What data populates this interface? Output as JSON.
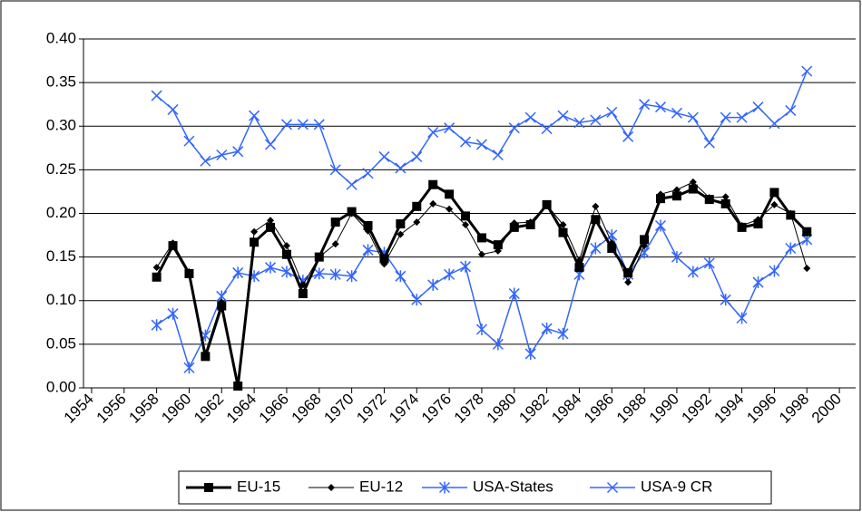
{
  "chart_data": {
    "type": "line",
    "x": [
      1958,
      1959,
      1960,
      1961,
      1962,
      1963,
      1964,
      1965,
      1966,
      1967,
      1968,
      1969,
      1970,
      1971,
      1972,
      1973,
      1974,
      1975,
      1976,
      1977,
      1978,
      1979,
      1980,
      1981,
      1982,
      1983,
      1984,
      1985,
      1986,
      1987,
      1988,
      1989,
      1990,
      1991,
      1992,
      1993,
      1994,
      1995,
      1996,
      1997,
      1998
    ],
    "series": [
      {
        "name": "EU-15",
        "color": "#000000",
        "marker": "square",
        "line_width": 3,
        "values": [
          0.127,
          0.163,
          0.131,
          0.036,
          0.094,
          0.002,
          0.167,
          0.184,
          0.153,
          0.108,
          0.15,
          0.19,
          0.202,
          0.186,
          0.148,
          0.188,
          0.208,
          0.233,
          0.222,
          0.197,
          0.172,
          0.164,
          0.184,
          0.187,
          0.21,
          0.178,
          0.138,
          0.193,
          0.16,
          0.132,
          0.17,
          0.217,
          0.22,
          0.228,
          0.216,
          0.211,
          0.184,
          0.188,
          0.224,
          0.198,
          0.179
        ]
      },
      {
        "name": "EU-12",
        "color": "#000000",
        "marker": "diamond",
        "line_width": 1,
        "values": [
          0.138,
          0.166,
          0.133,
          0.04,
          0.098,
          0.004,
          0.179,
          0.192,
          0.163,
          0.118,
          0.15,
          0.165,
          0.2,
          0.18,
          0.142,
          0.176,
          0.19,
          0.211,
          0.205,
          0.187,
          0.153,
          0.157,
          0.189,
          0.19,
          0.21,
          0.187,
          0.146,
          0.208,
          0.166,
          0.121,
          0.163,
          0.222,
          0.227,
          0.236,
          0.218,
          0.219,
          0.186,
          0.193,
          0.21,
          0.2,
          0.137
        ]
      },
      {
        "name": "USA-States",
        "color": "#3366ff",
        "marker": "asterisk",
        "line_width": 1.5,
        "values": [
          0.072,
          0.085,
          0.023,
          0.06,
          0.105,
          0.132,
          0.128,
          0.138,
          0.133,
          0.123,
          0.131,
          0.13,
          0.128,
          0.158,
          0.155,
          0.128,
          0.101,
          0.118,
          0.13,
          0.139,
          0.067,
          0.05,
          0.108,
          0.039,
          0.068,
          0.062,
          0.13,
          0.16,
          0.175,
          0.13,
          0.155,
          0.186,
          0.15,
          0.133,
          0.143,
          0.101,
          0.08,
          0.121,
          0.134,
          0.16,
          0.17
        ]
      },
      {
        "name": "USA-9 CR",
        "color": "#3366ff",
        "marker": "cross",
        "line_width": 1.5,
        "values": [
          0.335,
          0.319,
          0.283,
          0.26,
          0.267,
          0.271,
          0.312,
          0.279,
          0.302,
          0.302,
          0.302,
          0.25,
          0.233,
          0.246,
          0.265,
          0.252,
          0.265,
          0.293,
          0.298,
          0.282,
          0.279,
          0.267,
          0.298,
          0.31,
          0.297,
          0.312,
          0.304,
          0.307,
          0.316,
          0.288,
          0.325,
          0.322,
          0.315,
          0.31,
          0.281,
          0.31,
          0.31,
          0.322,
          0.303,
          0.318,
          0.363
        ]
      }
    ],
    "xlim": [
      1953.5,
      2001
    ],
    "xticks": [
      1954,
      1956,
      1958,
      1960,
      1962,
      1964,
      1966,
      1968,
      1970,
      1972,
      1974,
      1976,
      1978,
      1980,
      1982,
      1984,
      1986,
      1988,
      1990,
      1992,
      1994,
      1996,
      1998,
      2000
    ],
    "ylim": [
      0,
      0.4
    ],
    "yticks": [
      {
        "value": 0,
        "label": "0.00"
      },
      {
        "value": 0.05,
        "label": "0.05"
      },
      {
        "value": 0.1,
        "label": "0.10"
      },
      {
        "value": 0.15,
        "label": "0.15"
      },
      {
        "value": 0.2,
        "label": "0.20"
      },
      {
        "value": 0.25,
        "label": "0.25"
      },
      {
        "value": 0.3,
        "label": "0.30"
      },
      {
        "value": 0.35,
        "label": "0.35"
      },
      {
        "value": 0.4,
        "label": "0.40"
      }
    ],
    "grid": true,
    "legend": "bottom"
  }
}
